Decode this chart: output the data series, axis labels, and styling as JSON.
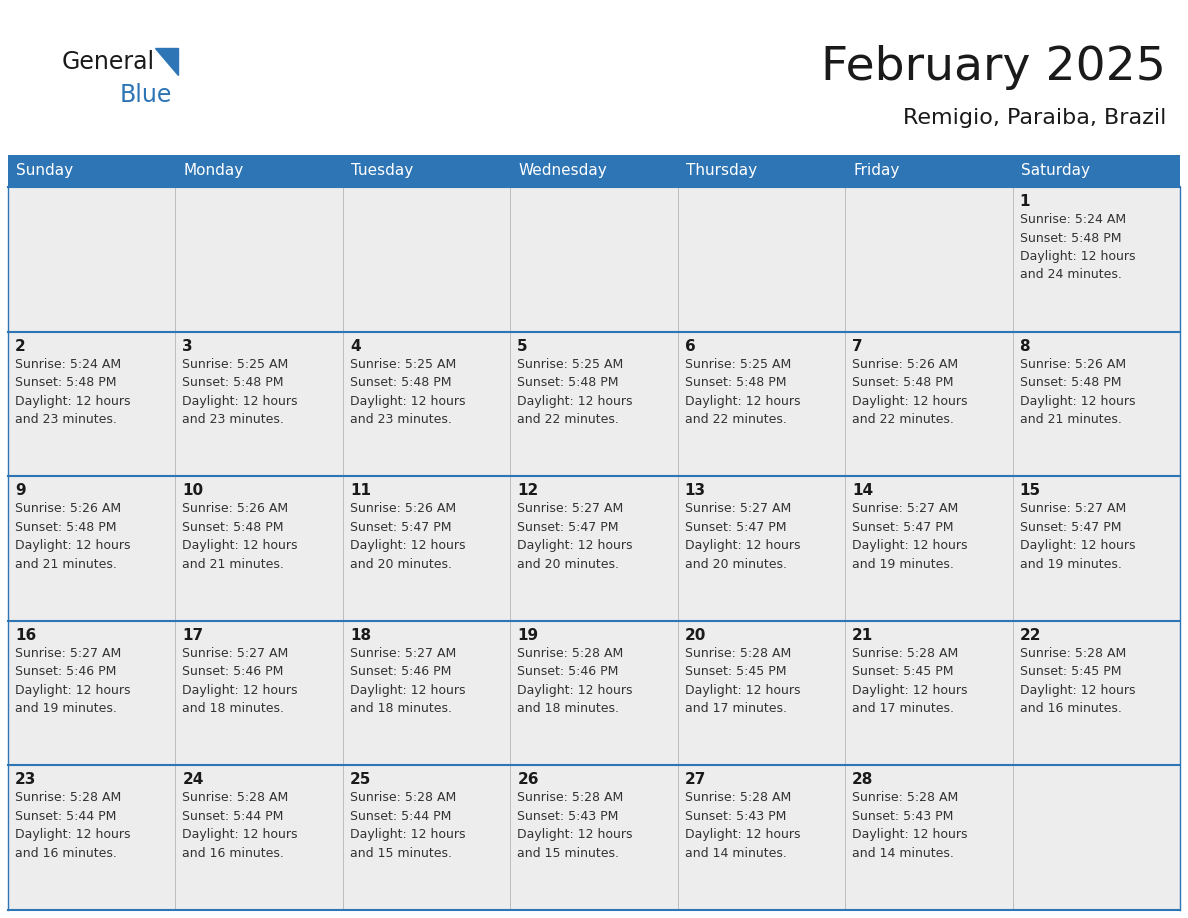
{
  "title": "February 2025",
  "subtitle": "Remigio, Paraiba, Brazil",
  "days_of_week": [
    "Sunday",
    "Monday",
    "Tuesday",
    "Wednesday",
    "Thursday",
    "Friday",
    "Saturday"
  ],
  "header_bg_color": "#2E75B6",
  "header_text_color": "#FFFFFF",
  "cell_bg_color": "#EDEDED",
  "grid_line_color": "#2E75B6",
  "title_color": "#1a1a1a",
  "subtitle_color": "#1a1a1a",
  "day_number_color": "#1a1a1a",
  "cell_text_color": "#333333",
  "logo_general_color": "#1a1a1a",
  "logo_blue_color": "#2E75B6",
  "logo_triangle_color": "#2E75B6",
  "weeks": [
    [
      {
        "day": null,
        "info": null
      },
      {
        "day": null,
        "info": null
      },
      {
        "day": null,
        "info": null
      },
      {
        "day": null,
        "info": null
      },
      {
        "day": null,
        "info": null
      },
      {
        "day": null,
        "info": null
      },
      {
        "day": 1,
        "info": "Sunrise: 5:24 AM\nSunset: 5:48 PM\nDaylight: 12 hours\nand 24 minutes."
      }
    ],
    [
      {
        "day": 2,
        "info": "Sunrise: 5:24 AM\nSunset: 5:48 PM\nDaylight: 12 hours\nand 23 minutes."
      },
      {
        "day": 3,
        "info": "Sunrise: 5:25 AM\nSunset: 5:48 PM\nDaylight: 12 hours\nand 23 minutes."
      },
      {
        "day": 4,
        "info": "Sunrise: 5:25 AM\nSunset: 5:48 PM\nDaylight: 12 hours\nand 23 minutes."
      },
      {
        "day": 5,
        "info": "Sunrise: 5:25 AM\nSunset: 5:48 PM\nDaylight: 12 hours\nand 22 minutes."
      },
      {
        "day": 6,
        "info": "Sunrise: 5:25 AM\nSunset: 5:48 PM\nDaylight: 12 hours\nand 22 minutes."
      },
      {
        "day": 7,
        "info": "Sunrise: 5:26 AM\nSunset: 5:48 PM\nDaylight: 12 hours\nand 22 minutes."
      },
      {
        "day": 8,
        "info": "Sunrise: 5:26 AM\nSunset: 5:48 PM\nDaylight: 12 hours\nand 21 minutes."
      }
    ],
    [
      {
        "day": 9,
        "info": "Sunrise: 5:26 AM\nSunset: 5:48 PM\nDaylight: 12 hours\nand 21 minutes."
      },
      {
        "day": 10,
        "info": "Sunrise: 5:26 AM\nSunset: 5:48 PM\nDaylight: 12 hours\nand 21 minutes."
      },
      {
        "day": 11,
        "info": "Sunrise: 5:26 AM\nSunset: 5:47 PM\nDaylight: 12 hours\nand 20 minutes."
      },
      {
        "day": 12,
        "info": "Sunrise: 5:27 AM\nSunset: 5:47 PM\nDaylight: 12 hours\nand 20 minutes."
      },
      {
        "day": 13,
        "info": "Sunrise: 5:27 AM\nSunset: 5:47 PM\nDaylight: 12 hours\nand 20 minutes."
      },
      {
        "day": 14,
        "info": "Sunrise: 5:27 AM\nSunset: 5:47 PM\nDaylight: 12 hours\nand 19 minutes."
      },
      {
        "day": 15,
        "info": "Sunrise: 5:27 AM\nSunset: 5:47 PM\nDaylight: 12 hours\nand 19 minutes."
      }
    ],
    [
      {
        "day": 16,
        "info": "Sunrise: 5:27 AM\nSunset: 5:46 PM\nDaylight: 12 hours\nand 19 minutes."
      },
      {
        "day": 17,
        "info": "Sunrise: 5:27 AM\nSunset: 5:46 PM\nDaylight: 12 hours\nand 18 minutes."
      },
      {
        "day": 18,
        "info": "Sunrise: 5:27 AM\nSunset: 5:46 PM\nDaylight: 12 hours\nand 18 minutes."
      },
      {
        "day": 19,
        "info": "Sunrise: 5:28 AM\nSunset: 5:46 PM\nDaylight: 12 hours\nand 18 minutes."
      },
      {
        "day": 20,
        "info": "Sunrise: 5:28 AM\nSunset: 5:45 PM\nDaylight: 12 hours\nand 17 minutes."
      },
      {
        "day": 21,
        "info": "Sunrise: 5:28 AM\nSunset: 5:45 PM\nDaylight: 12 hours\nand 17 minutes."
      },
      {
        "day": 22,
        "info": "Sunrise: 5:28 AM\nSunset: 5:45 PM\nDaylight: 12 hours\nand 16 minutes."
      }
    ],
    [
      {
        "day": 23,
        "info": "Sunrise: 5:28 AM\nSunset: 5:44 PM\nDaylight: 12 hours\nand 16 minutes."
      },
      {
        "day": 24,
        "info": "Sunrise: 5:28 AM\nSunset: 5:44 PM\nDaylight: 12 hours\nand 16 minutes."
      },
      {
        "day": 25,
        "info": "Sunrise: 5:28 AM\nSunset: 5:44 PM\nDaylight: 12 hours\nand 15 minutes."
      },
      {
        "day": 26,
        "info": "Sunrise: 5:28 AM\nSunset: 5:43 PM\nDaylight: 12 hours\nand 15 minutes."
      },
      {
        "day": 27,
        "info": "Sunrise: 5:28 AM\nSunset: 5:43 PM\nDaylight: 12 hours\nand 14 minutes."
      },
      {
        "day": 28,
        "info": "Sunrise: 5:28 AM\nSunset: 5:43 PM\nDaylight: 12 hours\nand 14 minutes."
      },
      {
        "day": null,
        "info": null
      }
    ]
  ]
}
